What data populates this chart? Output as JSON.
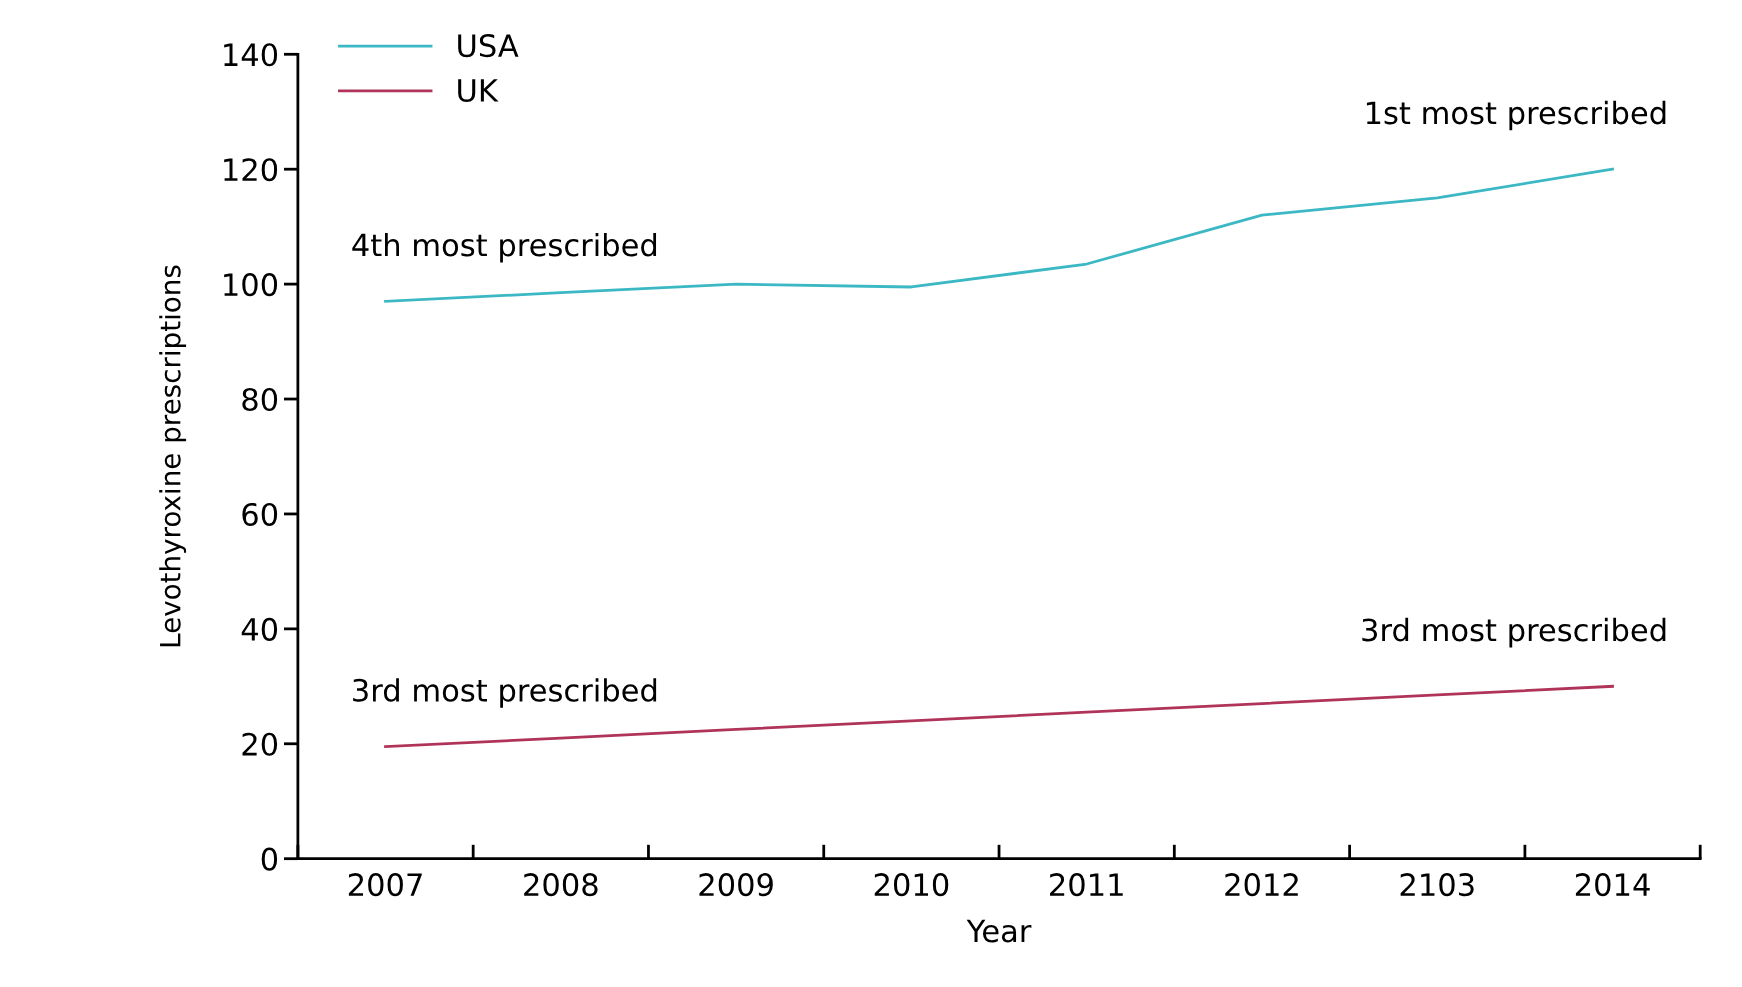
{
  "chart_data": {
    "type": "line",
    "xlabel": "Year",
    "ylabel": "Levothyroxine prescriptions",
    "categories": [
      "2007",
      "2008",
      "2009",
      "2010",
      "2011",
      "2012",
      "2103",
      "2014"
    ],
    "series": [
      {
        "name": "USA",
        "color": "#3bb8c4",
        "values": [
          97,
          98.5,
          100,
          99.5,
          103.5,
          112,
          115,
          120
        ]
      },
      {
        "name": "UK",
        "color": "#b0335a",
        "values": [
          19.5,
          21,
          22.5,
          24,
          25.5,
          27,
          28.5,
          30
        ]
      }
    ],
    "ylim": [
      0,
      140
    ],
    "yticks": [
      0,
      20,
      40,
      60,
      80,
      100,
      120,
      140
    ],
    "legend": "top left",
    "grid": false,
    "marker": "none",
    "line_style": "solid",
    "annotations": [
      {
        "text": "4th most prescribed",
        "x": "2007",
        "y": 97
      },
      {
        "text": "1st most prescribed",
        "x": "2014",
        "y": 120
      },
      {
        "text": "3rd most prescribed",
        "x": "2007",
        "y": 19.5
      },
      {
        "text": "3rd most prescribed",
        "x": "2014",
        "y": 30
      }
    ]
  }
}
